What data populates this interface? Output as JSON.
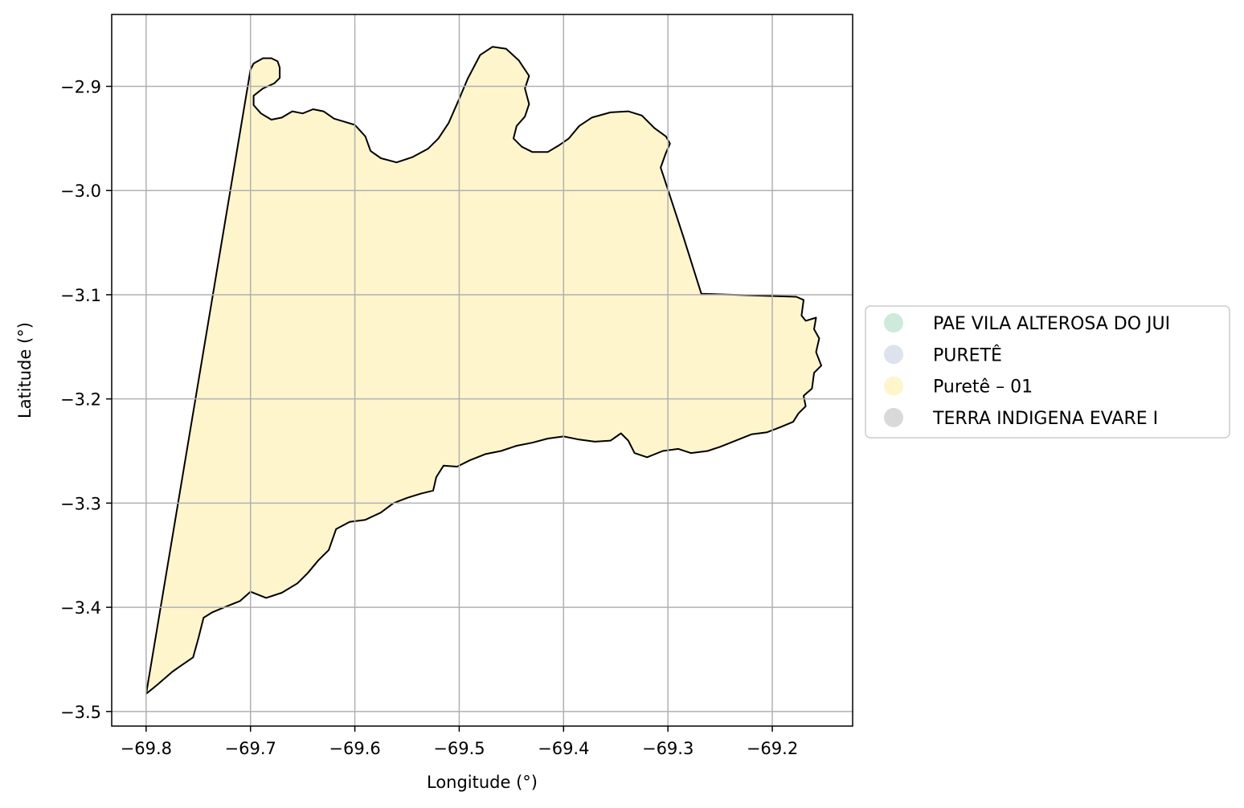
{
  "chart_data": {
    "type": "map",
    "xlabel": "Longitude (°)",
    "ylabel": "Latitude (°)",
    "xlim": [
      -69.833,
      -69.123
    ],
    "ylim": [
      -3.514,
      -2.831
    ],
    "xticks": [
      -69.8,
      -69.7,
      -69.6,
      -69.5,
      -69.4,
      -69.3,
      -69.2
    ],
    "yticks": [
      -3.5,
      -3.4,
      -3.3,
      -3.2,
      -3.1,
      -3.0,
      -2.9
    ],
    "xtick_labels": [
      "−69.8",
      "−69.7",
      "−69.6",
      "−69.5",
      "−69.4",
      "−69.3",
      "−69.2"
    ],
    "ytick_labels": [
      "−3.5",
      "−3.4",
      "−3.3",
      "−3.2",
      "−3.1",
      "−3.0",
      "−2.9"
    ],
    "grid": true,
    "legend_position": "right",
    "legend": [
      {
        "label": "PAE VILA ALTEROSA DO JUI",
        "color": "#cdeadb"
      },
      {
        "label": "PURETÊ",
        "color": "#dde3ee"
      },
      {
        "label": "Puretê – 01",
        "color": "#fff5cc"
      },
      {
        "label": "TERRA INDIGENA EVARE I",
        "color": "#d9d9d9"
      }
    ],
    "polygon": {
      "name": "Puretê – 01",
      "fill": "#fff5cc",
      "edge": "#000000",
      "coordinates": [
        [
          -69.8,
          -3.483
        ],
        [
          -69.7,
          -2.884
        ],
        [
          -69.697,
          -2.878
        ],
        [
          -69.688,
          -2.873
        ],
        [
          -69.68,
          -2.873
        ],
        [
          -69.674,
          -2.876
        ],
        [
          -69.672,
          -2.882
        ],
        [
          -69.672,
          -2.892
        ],
        [
          -69.677,
          -2.897
        ],
        [
          -69.688,
          -2.902
        ],
        [
          -69.697,
          -2.909
        ],
        [
          -69.697,
          -2.918
        ],
        [
          -69.69,
          -2.926
        ],
        [
          -69.68,
          -2.932
        ],
        [
          -69.67,
          -2.93
        ],
        [
          -69.66,
          -2.924
        ],
        [
          -69.65,
          -2.926
        ],
        [
          -69.64,
          -2.922
        ],
        [
          -69.63,
          -2.924
        ],
        [
          -69.62,
          -2.931
        ],
        [
          -69.61,
          -2.934
        ],
        [
          -69.6,
          -2.937
        ],
        [
          -69.59,
          -2.948
        ],
        [
          -69.585,
          -2.962
        ],
        [
          -69.575,
          -2.969
        ],
        [
          -69.56,
          -2.973
        ],
        [
          -69.545,
          -2.968
        ],
        [
          -69.53,
          -2.96
        ],
        [
          -69.52,
          -2.95
        ],
        [
          -69.51,
          -2.935
        ],
        [
          -69.5,
          -2.912
        ],
        [
          -69.492,
          -2.893
        ],
        [
          -69.48,
          -2.87
        ],
        [
          -69.468,
          -2.862
        ],
        [
          -69.455,
          -2.864
        ],
        [
          -69.443,
          -2.875
        ],
        [
          -69.433,
          -2.89
        ],
        [
          -69.437,
          -2.902
        ],
        [
          -69.433,
          -2.917
        ],
        [
          -69.437,
          -2.929
        ],
        [
          -69.445,
          -2.938
        ],
        [
          -69.448,
          -2.95
        ],
        [
          -69.44,
          -2.958
        ],
        [
          -69.43,
          -2.963
        ],
        [
          -69.415,
          -2.963
        ],
        [
          -69.405,
          -2.957
        ],
        [
          -69.395,
          -2.95
        ],
        [
          -69.385,
          -2.938
        ],
        [
          -69.373,
          -2.93
        ],
        [
          -69.355,
          -2.925
        ],
        [
          -69.338,
          -2.924
        ],
        [
          -69.325,
          -2.928
        ],
        [
          -69.313,
          -2.94
        ],
        [
          -69.302,
          -2.948
        ],
        [
          -69.298,
          -2.955
        ],
        [
          -69.302,
          -2.964
        ],
        [
          -69.307,
          -2.978
        ],
        [
          -69.303,
          -2.99
        ],
        [
          -69.285,
          -3.045
        ],
        [
          -69.268,
          -3.099
        ],
        [
          -69.177,
          -3.102
        ],
        [
          -69.17,
          -3.105
        ],
        [
          -69.172,
          -3.12
        ],
        [
          -69.168,
          -3.125
        ],
        [
          -69.158,
          -3.122
        ],
        [
          -69.16,
          -3.133
        ],
        [
          -69.155,
          -3.142
        ],
        [
          -69.158,
          -3.155
        ],
        [
          -69.153,
          -3.168
        ],
        [
          -69.16,
          -3.175
        ],
        [
          -69.162,
          -3.19
        ],
        [
          -69.17,
          -3.197
        ],
        [
          -69.168,
          -3.207
        ],
        [
          -69.175,
          -3.214
        ],
        [
          -69.18,
          -3.222
        ],
        [
          -69.192,
          -3.227
        ],
        [
          -69.205,
          -3.232
        ],
        [
          -69.22,
          -3.234
        ],
        [
          -69.235,
          -3.24
        ],
        [
          -69.25,
          -3.246
        ],
        [
          -69.262,
          -3.25
        ],
        [
          -69.278,
          -3.252
        ],
        [
          -69.29,
          -3.248
        ],
        [
          -69.305,
          -3.25
        ],
        [
          -69.32,
          -3.256
        ],
        [
          -69.332,
          -3.252
        ],
        [
          -69.338,
          -3.24
        ],
        [
          -69.345,
          -3.233
        ],
        [
          -69.355,
          -3.24
        ],
        [
          -69.37,
          -3.241
        ],
        [
          -69.385,
          -3.239
        ],
        [
          -69.4,
          -3.236
        ],
        [
          -69.415,
          -3.238
        ],
        [
          -69.43,
          -3.242
        ],
        [
          -69.445,
          -3.245
        ],
        [
          -69.46,
          -3.25
        ],
        [
          -69.475,
          -3.253
        ],
        [
          -69.49,
          -3.259
        ],
        [
          -69.502,
          -3.265
        ],
        [
          -69.515,
          -3.264
        ],
        [
          -69.522,
          -3.275
        ],
        [
          -69.525,
          -3.288
        ],
        [
          -69.537,
          -3.291
        ],
        [
          -69.55,
          -3.295
        ],
        [
          -69.563,
          -3.3
        ],
        [
          -69.575,
          -3.309
        ],
        [
          -69.59,
          -3.316
        ],
        [
          -69.605,
          -3.318
        ],
        [
          -69.618,
          -3.325
        ],
        [
          -69.625,
          -3.345
        ],
        [
          -69.635,
          -3.355
        ],
        [
          -69.645,
          -3.367
        ],
        [
          -69.655,
          -3.377
        ],
        [
          -69.67,
          -3.386
        ],
        [
          -69.685,
          -3.391
        ],
        [
          -69.7,
          -3.385
        ],
        [
          -69.71,
          -3.394
        ],
        [
          -69.725,
          -3.4
        ],
        [
          -69.737,
          -3.405
        ],
        [
          -69.745,
          -3.41
        ],
        [
          -69.75,
          -3.43
        ],
        [
          -69.755,
          -3.448
        ],
        [
          -69.768,
          -3.457
        ],
        [
          -69.775,
          -3.462
        ],
        [
          -69.79,
          -3.475
        ],
        [
          -69.8,
          -3.483
        ]
      ]
    }
  }
}
